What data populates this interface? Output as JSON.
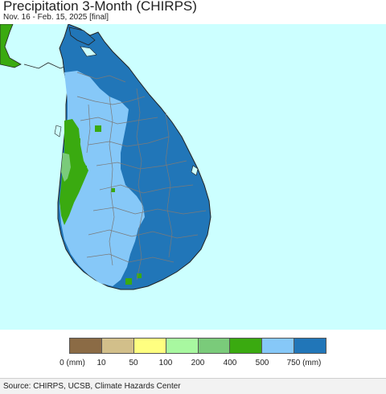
{
  "title": "Precipitation 3-Month (CHIRPS)",
  "subtitle": "Nov. 16 - Feb. 15, 2025 [final]",
  "legend": {
    "colors": [
      "#8B6B45",
      "#D2BF8A",
      "#FFFF80",
      "#A8F8A0",
      "#7ACB7A",
      "#3AAA10",
      "#86C8F8",
      "#2176B8"
    ],
    "ticks": [
      "0 (mm)",
      "10",
      "50",
      "100",
      "200",
      "400",
      "500",
      "750 (mm)"
    ]
  },
  "map": {
    "ocean_color": "#CCFFFF",
    "region": "Sri Lanka"
  },
  "source": "Source: CHIRPS, UCSB, Climate Hazards Center"
}
